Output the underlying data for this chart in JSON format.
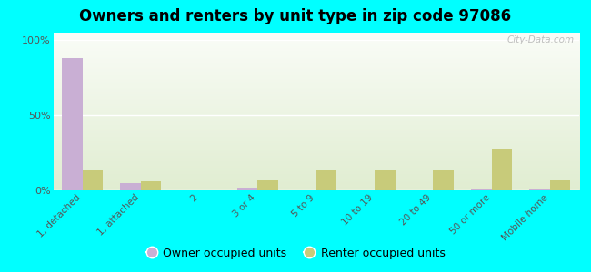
{
  "title": "Owners and renters by unit type in zip code 97086",
  "categories": [
    "1, detached",
    "1, attached",
    "2",
    "3 or 4",
    "5 to 9",
    "10 to 19",
    "20 to 49",
    "50 or more",
    "Mobile home"
  ],
  "owner_values": [
    88,
    5,
    0.3,
    2,
    0.3,
    0.3,
    0.3,
    1.5,
    1.5
  ],
  "renter_values": [
    14,
    6,
    0,
    7,
    14,
    14,
    13,
    28,
    7
  ],
  "owner_color": "#c9afd4",
  "renter_color": "#c8cb7a",
  "background_color": "#00ffff",
  "yticks": [
    0,
    50,
    100
  ],
  "ytick_labels": [
    "0%",
    "50%",
    "100%"
  ],
  "watermark": "City-Data.com",
  "legend_owner": "Owner occupied units",
  "legend_renter": "Renter occupied units",
  "bar_width": 0.35,
  "ylim": [
    0,
    105
  ]
}
